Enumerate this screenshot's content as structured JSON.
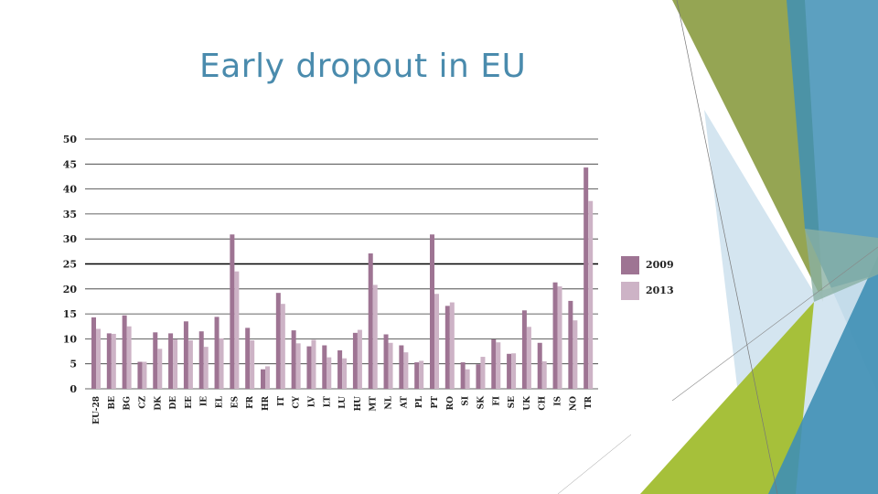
{
  "slide": {
    "title": "Early dropout in EU"
  },
  "theme": {
    "accent_blue": "#4a8bad",
    "deco_olive": "#8fa04a",
    "deco_lime": "#a6c03a",
    "deco_teal": "#3f8fb5",
    "deco_light": "#cfe2ee"
  },
  "chart_data": {
    "type": "bar",
    "title": "",
    "xlabel": "",
    "ylabel": "",
    "ylim": [
      0,
      50
    ],
    "yticks": [
      0,
      5,
      10,
      15,
      20,
      25,
      30,
      35,
      40,
      45,
      50
    ],
    "grid": true,
    "legend_position": "right",
    "categories": [
      "EU-28",
      "BE",
      "BG",
      "CZ",
      "DK",
      "DE",
      "EE",
      "IE",
      "EL",
      "ES",
      "FR",
      "HR",
      "IT",
      "CY",
      "LV",
      "LT",
      "LU",
      "HU",
      "MT",
      "NL",
      "AT",
      "PL",
      "PT",
      "RO",
      "SI",
      "SK",
      "FI",
      "SE",
      "UK",
      "CH",
      "IS",
      "NO",
      "TR"
    ],
    "series": [
      {
        "name": "2009",
        "color": "#9e7493",
        "values": [
          14.3,
          11.1,
          14.7,
          5.4,
          11.3,
          11.1,
          13.5,
          11.5,
          14.4,
          30.9,
          12.2,
          3.9,
          19.2,
          11.7,
          8.5,
          8.7,
          7.7,
          11.2,
          27.1,
          10.9,
          8.7,
          5.3,
          30.9,
          16.6,
          5.3,
          4.9,
          9.9,
          7.0,
          15.7,
          9.2,
          21.3,
          17.6,
          44.3
        ]
      },
      {
        "name": "2013",
        "color": "#cdb3c6",
        "values": [
          12.0,
          11.0,
          12.5,
          5.4,
          8.0,
          9.9,
          9.7,
          8.4,
          10.1,
          23.5,
          9.7,
          4.5,
          17.0,
          9.1,
          9.8,
          6.3,
          6.1,
          11.8,
          20.8,
          9.2,
          7.3,
          5.6,
          19.0,
          17.3,
          3.9,
          6.4,
          9.3,
          7.1,
          12.4,
          5.5,
          20.5,
          13.7,
          37.6
        ]
      }
    ]
  }
}
